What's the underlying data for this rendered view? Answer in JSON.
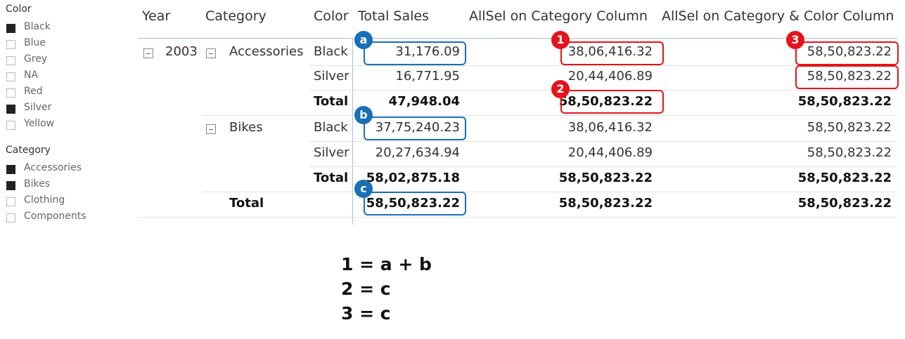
{
  "slicers": [
    {
      "title": "Color",
      "items": [
        {
          "label": "Black",
          "selected": true
        },
        {
          "label": "Blue",
          "selected": false
        },
        {
          "label": "Grey",
          "selected": false
        },
        {
          "label": "NA",
          "selected": false
        },
        {
          "label": "Red",
          "selected": false
        },
        {
          "label": "Silver",
          "selected": true
        },
        {
          "label": "Yellow",
          "selected": false
        }
      ]
    },
    {
      "title": "Category",
      "items": [
        {
          "label": "Accessories",
          "selected": true
        },
        {
          "label": "Bikes",
          "selected": true
        },
        {
          "label": "Clothing",
          "selected": false
        },
        {
          "label": "Components",
          "selected": false
        }
      ]
    }
  ],
  "table": {
    "headers": [
      "Year",
      "Category",
      "Color",
      "Total Sales",
      "AllSel on Category Column",
      "AllSel on Category & Color Column"
    ],
    "rows": [
      {
        "total": false,
        "cells": [
          "2003",
          "Accessories",
          "Black",
          "31,176.09",
          "38,06,416.32",
          "58,50,823.22"
        ]
      },
      {
        "total": false,
        "cells": [
          null,
          null,
          "Silver",
          "16,771.95",
          "20,44,406.89",
          "58,50,823.22"
        ]
      },
      {
        "total": true,
        "cells": [
          null,
          null,
          "Total",
          "47,948.04",
          "58,50,823.22",
          "58,50,823.22"
        ]
      },
      {
        "total": false,
        "cells": [
          null,
          "Bikes",
          "Black",
          "37,75,240.23",
          "38,06,416.32",
          "58,50,823.22"
        ]
      },
      {
        "total": false,
        "cells": [
          null,
          null,
          "Silver",
          "20,27,634.94",
          "20,44,406.89",
          "58,50,823.22"
        ]
      },
      {
        "total": true,
        "cells": [
          null,
          null,
          "Total",
          "58,02,875.18",
          "58,50,823.22",
          "58,50,823.22"
        ]
      },
      {
        "total": true,
        "cells": [
          null,
          "Total",
          null,
          "58,50,823.22",
          "58,50,823.22",
          "58,50,823.22"
        ]
      }
    ]
  },
  "markers": {
    "blue": [
      "a",
      "b",
      "c"
    ],
    "red": [
      "1",
      "2",
      "3"
    ]
  },
  "equations": [
    "1 = a + b",
    "2 = c",
    "3 = c"
  ]
}
